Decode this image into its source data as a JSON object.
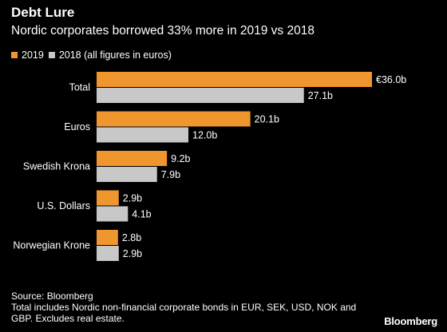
{
  "header": {
    "title": "Debt Lure",
    "subtitle": "Nordic corporates borrowed 33% more in 2019 vs 2018"
  },
  "legend": {
    "items": [
      {
        "label": "2019",
        "color": "#f0962e"
      },
      {
        "label": "2018 (all figures in euros)",
        "color": "#c8c8c8"
      }
    ]
  },
  "chart_data": {
    "type": "bar",
    "orientation": "horizontal",
    "categories": [
      "Total",
      "Euros",
      "Swedish Krona",
      "U.S. Dollars",
      "Norwegian Krone"
    ],
    "series": [
      {
        "name": "2019",
        "values": [
          36.0,
          20.1,
          9.2,
          2.9,
          2.8
        ],
        "labels": [
          "€36.0b",
          "20.1b",
          "9.2b",
          "2.9b",
          "2.8b"
        ],
        "color": "#f0962e"
      },
      {
        "name": "2018",
        "values": [
          27.1,
          12.0,
          7.9,
          4.1,
          2.9
        ],
        "labels": [
          "27.1b",
          "12.0b",
          "7.9b",
          "4.1b",
          "2.9b"
        ],
        "color": "#c8c8c8"
      }
    ],
    "xlim": [
      0,
      36.0
    ],
    "grid": false,
    "legend_position": "top-left"
  },
  "footer": {
    "source": "Source: Bloomberg",
    "note_line1": "Total includes Nordic non-financial corporate bonds in EUR, SEK, USD, NOK and",
    "note_line2": "GBP. Excludes real estate."
  },
  "brand": "Bloomberg"
}
